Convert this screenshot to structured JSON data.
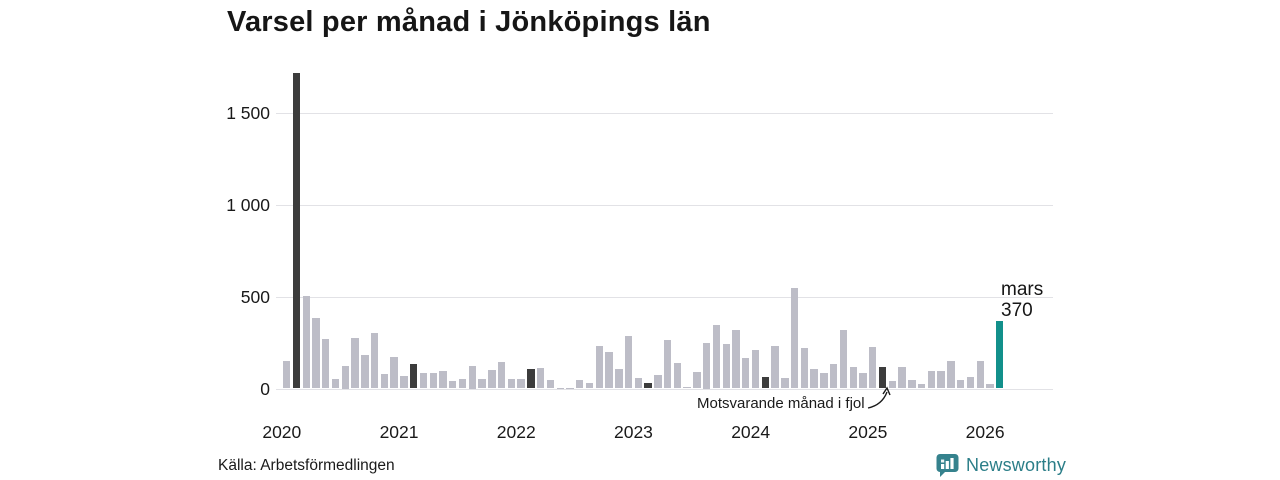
{
  "title": "Varsel per månad i Jönköpings län",
  "source": "Källa: Arbetsförmedlingen",
  "branding": {
    "name": "Newsworthy"
  },
  "annotation": {
    "text": "Motsvarande månad i fjol"
  },
  "highlight": {
    "month_label": "mars",
    "value_label": "370"
  },
  "colors": {
    "bar": "#bdbdc7",
    "prev_year_bar": "#3c3c3c",
    "highlight_bar": "#12908b",
    "grid": "#e2e2e6",
    "text": "#1a1a1a",
    "brand": "#2b7e88"
  },
  "chart_data": {
    "type": "bar",
    "title": "Varsel per månad i Jönköpings län",
    "xlabel": "",
    "ylabel": "",
    "ylim": [
      0,
      1750
    ],
    "grid": true,
    "yticks": [
      {
        "value": 0,
        "label": "0"
      },
      {
        "value": 500,
        "label": "500"
      },
      {
        "value": 1000,
        "label": "1 000"
      },
      {
        "value": 1500,
        "label": "1 500"
      }
    ],
    "year_labels": [
      "2020",
      "2021",
      "2022",
      "2023",
      "2024",
      "2025",
      "2026"
    ],
    "series": [
      {
        "label": "feb 2020",
        "value": 150,
        "kind": "normal"
      },
      {
        "label": "mar 2020",
        "value": 1720,
        "kind": "prev_year"
      },
      {
        "label": "apr 2020",
        "value": 505,
        "kind": "normal"
      },
      {
        "label": "maj 2020",
        "value": 385,
        "kind": "normal"
      },
      {
        "label": "jun 2020",
        "value": 270,
        "kind": "normal"
      },
      {
        "label": "jul 2020",
        "value": 50,
        "kind": "normal"
      },
      {
        "label": "aug 2020",
        "value": 125,
        "kind": "normal"
      },
      {
        "label": "sep 2020",
        "value": 275,
        "kind": "normal"
      },
      {
        "label": "okt 2020",
        "value": 180,
        "kind": "normal"
      },
      {
        "label": "nov 2020",
        "value": 300,
        "kind": "normal"
      },
      {
        "label": "dec 2020",
        "value": 80,
        "kind": "normal"
      },
      {
        "label": "jan 2021",
        "value": 170,
        "kind": "normal"
      },
      {
        "label": "feb 2021",
        "value": 70,
        "kind": "normal"
      },
      {
        "label": "mar 2021",
        "value": 135,
        "kind": "prev_year"
      },
      {
        "label": "apr 2021",
        "value": 85,
        "kind": "normal"
      },
      {
        "label": "maj 2021",
        "value": 85,
        "kind": "normal"
      },
      {
        "label": "jun 2021",
        "value": 95,
        "kind": "normal"
      },
      {
        "label": "jul 2021",
        "value": 40,
        "kind": "normal"
      },
      {
        "label": "aug 2021",
        "value": 50,
        "kind": "normal"
      },
      {
        "label": "sep 2021",
        "value": 125,
        "kind": "normal"
      },
      {
        "label": "okt 2021",
        "value": 50,
        "kind": "normal"
      },
      {
        "label": "nov 2021",
        "value": 100,
        "kind": "normal"
      },
      {
        "label": "dec 2021",
        "value": 145,
        "kind": "normal"
      },
      {
        "label": "jan 2022",
        "value": 50,
        "kind": "normal"
      },
      {
        "label": "feb 2022",
        "value": 50,
        "kind": "normal"
      },
      {
        "label": "mar 2022",
        "value": 105,
        "kind": "prev_year"
      },
      {
        "label": "apr 2022",
        "value": 110,
        "kind": "normal"
      },
      {
        "label": "maj 2022",
        "value": 45,
        "kind": "normal"
      },
      {
        "label": "jun 2022",
        "value": 5,
        "kind": "normal"
      },
      {
        "label": "jul 2022",
        "value": 5,
        "kind": "normal"
      },
      {
        "label": "aug 2022",
        "value": 45,
        "kind": "normal"
      },
      {
        "label": "sep 2022",
        "value": 30,
        "kind": "normal"
      },
      {
        "label": "okt 2022",
        "value": 230,
        "kind": "normal"
      },
      {
        "label": "nov 2022",
        "value": 200,
        "kind": "normal"
      },
      {
        "label": "dec 2022",
        "value": 105,
        "kind": "normal"
      },
      {
        "label": "jan 2023",
        "value": 285,
        "kind": "normal"
      },
      {
        "label": "feb 2023",
        "value": 55,
        "kind": "normal"
      },
      {
        "label": "mar 2023",
        "value": 30,
        "kind": "prev_year"
      },
      {
        "label": "apr 2023",
        "value": 75,
        "kind": "normal"
      },
      {
        "label": "maj 2023",
        "value": 265,
        "kind": "normal"
      },
      {
        "label": "jun 2023",
        "value": 140,
        "kind": "normal"
      },
      {
        "label": "jul 2023",
        "value": 10,
        "kind": "normal"
      },
      {
        "label": "aug 2023",
        "value": 90,
        "kind": "normal"
      },
      {
        "label": "sep 2023",
        "value": 250,
        "kind": "normal"
      },
      {
        "label": "okt 2023",
        "value": 345,
        "kind": "normal"
      },
      {
        "label": "nov 2023",
        "value": 240,
        "kind": "normal"
      },
      {
        "label": "dec 2023",
        "value": 320,
        "kind": "normal"
      },
      {
        "label": "jan 2024",
        "value": 165,
        "kind": "normal"
      },
      {
        "label": "feb 2024",
        "value": 210,
        "kind": "normal"
      },
      {
        "label": "mar 2024",
        "value": 60,
        "kind": "prev_year"
      },
      {
        "label": "apr 2024",
        "value": 230,
        "kind": "normal"
      },
      {
        "label": "maj 2024",
        "value": 55,
        "kind": "normal"
      },
      {
        "label": "jun 2024",
        "value": 550,
        "kind": "normal"
      },
      {
        "label": "jul 2024",
        "value": 220,
        "kind": "normal"
      },
      {
        "label": "aug 2024",
        "value": 105,
        "kind": "normal"
      },
      {
        "label": "sep 2024",
        "value": 85,
        "kind": "normal"
      },
      {
        "label": "okt 2024",
        "value": 135,
        "kind": "normal"
      },
      {
        "label": "nov 2024",
        "value": 320,
        "kind": "normal"
      },
      {
        "label": "dec 2024",
        "value": 115,
        "kind": "normal"
      },
      {
        "label": "jan 2025",
        "value": 85,
        "kind": "normal"
      },
      {
        "label": "feb 2025",
        "value": 225,
        "kind": "normal"
      },
      {
        "label": "mar 2025",
        "value": 115,
        "kind": "prev_year"
      },
      {
        "label": "apr 2025",
        "value": 40,
        "kind": "normal"
      },
      {
        "label": "maj 2025",
        "value": 115,
        "kind": "normal"
      },
      {
        "label": "jun 2025",
        "value": 45,
        "kind": "normal"
      },
      {
        "label": "jul 2025",
        "value": 25,
        "kind": "normal"
      },
      {
        "label": "aug 2025",
        "value": 95,
        "kind": "normal"
      },
      {
        "label": "sep 2025",
        "value": 95,
        "kind": "normal"
      },
      {
        "label": "okt 2025",
        "value": 150,
        "kind": "normal"
      },
      {
        "label": "nov 2025",
        "value": 45,
        "kind": "normal"
      },
      {
        "label": "dec 2025",
        "value": 65,
        "kind": "normal"
      },
      {
        "label": "jan 2026",
        "value": 150,
        "kind": "normal"
      },
      {
        "label": "feb 2026",
        "value": 25,
        "kind": "normal"
      },
      {
        "label": "mar 2026",
        "value": 370,
        "kind": "current"
      }
    ]
  }
}
